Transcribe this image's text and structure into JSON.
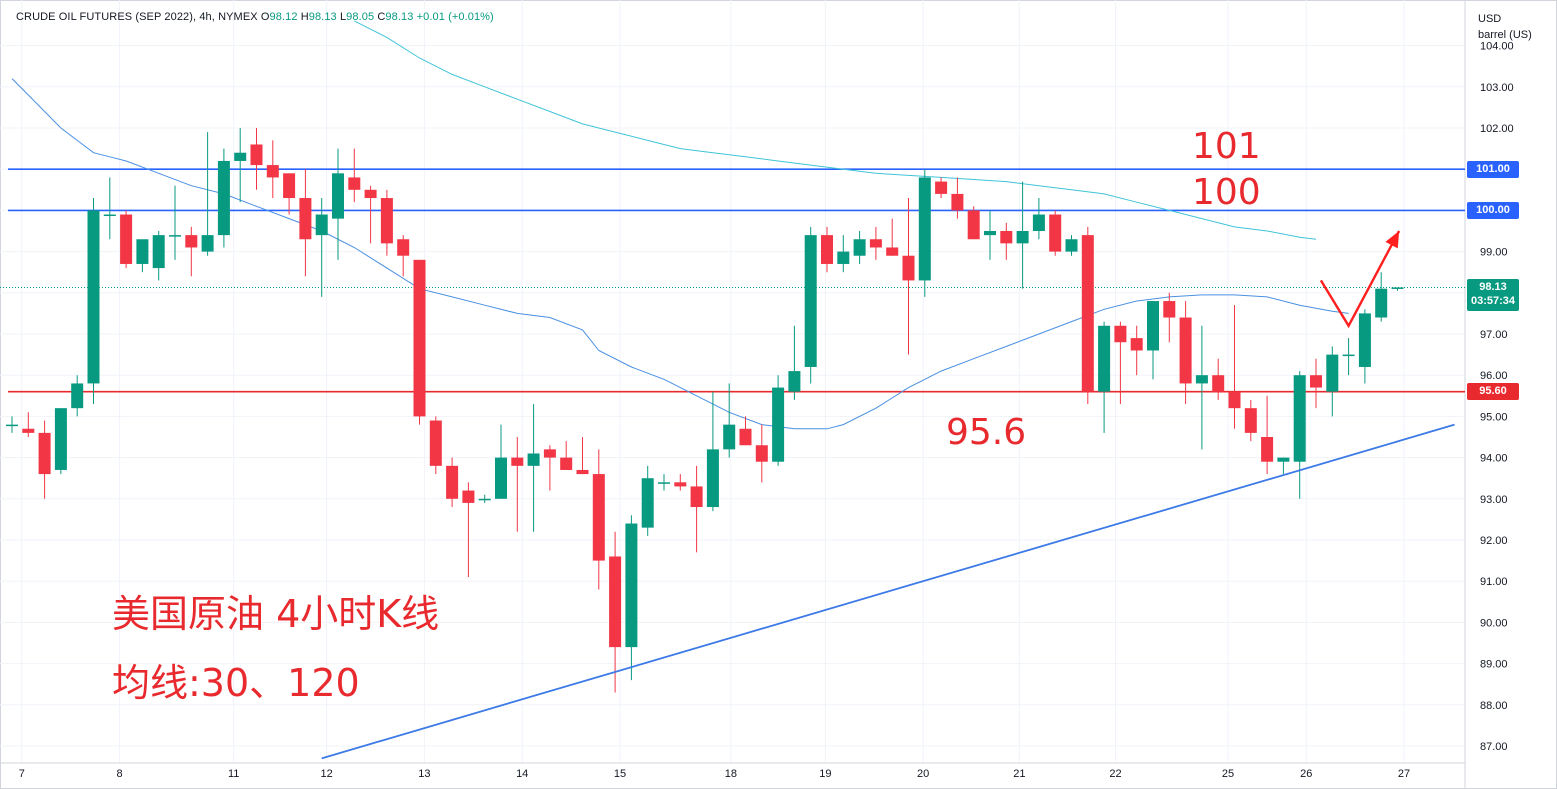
{
  "header": {
    "symbol": "CRUDE OIL FUTURES (SEP 2022), 4h, NYMEX",
    "o_label": "O",
    "o_value": "98.12",
    "h_label": "H",
    "h_value": "98.13",
    "l_label": "L",
    "l_value": "98.05",
    "c_label": "C",
    "c_value": "98.13",
    "change": "+0.01 (+0.01%)"
  },
  "units": {
    "currency": "USD",
    "unit": "barrel (US)"
  },
  "annotations": {
    "title_cn": "美国原油 4小时K线",
    "ma_cn": "均线:30、120",
    "level_101": "101",
    "level_100": "100",
    "level_956": "95.6"
  },
  "price_tags": {
    "t101": "101.00",
    "t100": "100.00",
    "t956": "95.60",
    "last_price": "98.13",
    "countdown": "03:57:34"
  },
  "colors": {
    "up": "#089981",
    "down": "#f23645",
    "level_blue": "#2962ff",
    "level_red": "#e8292d",
    "ma30": "#4a90e2",
    "ma120": "#40c4d8",
    "trend": "#3d7ae6"
  },
  "chart_data": {
    "type": "candlestick",
    "title": "CRUDE OIL FUTURES (SEP 2022), 4h, NYMEX",
    "ylim": [
      86.6,
      104.6
    ],
    "y_ticks": [
      "87.00",
      "88.00",
      "89.00",
      "90.00",
      "91.00",
      "92.00",
      "93.00",
      "94.00",
      "95.00",
      "96.00",
      "97.00",
      "98.00",
      "99.00",
      "100.00",
      "101.00",
      "102.00",
      "103.00",
      "104.00"
    ],
    "x_ticks": [
      {
        "label": "7",
        "bar": 0.6
      },
      {
        "label": "8",
        "bar": 6.6
      },
      {
        "label": "11",
        "bar": 13.6
      },
      {
        "label": "12",
        "bar": 19.3
      },
      {
        "label": "13",
        "bar": 25.3
      },
      {
        "label": "14",
        "bar": 31.3
      },
      {
        "label": "15",
        "bar": 37.3
      },
      {
        "label": "18",
        "bar": 44.1
      },
      {
        "label": "19",
        "bar": 49.9
      },
      {
        "label": "20",
        "bar": 55.9
      },
      {
        "label": "21",
        "bar": 61.8
      },
      {
        "label": "22",
        "bar": 67.7
      },
      {
        "label": "25",
        "bar": 74.6
      },
      {
        "label": "26",
        "bar": 79.4
      },
      {
        "label": "27",
        "bar": 85.4
      }
    ],
    "ohlc": [
      [
        94.8,
        95.0,
        94.6,
        94.8
      ],
      [
        94.7,
        95.1,
        94.5,
        94.6
      ],
      [
        94.6,
        94.9,
        93.0,
        93.6
      ],
      [
        93.7,
        95.2,
        93.6,
        95.2
      ],
      [
        95.2,
        96.0,
        95.0,
        95.8
      ],
      [
        95.8,
        100.3,
        95.3,
        100.0
      ],
      [
        99.9,
        100.8,
        99.3,
        99.9
      ],
      [
        99.9,
        100.0,
        98.6,
        98.7
      ],
      [
        98.7,
        99.2,
        98.5,
        99.3
      ],
      [
        98.6,
        99.5,
        98.3,
        99.4
      ],
      [
        99.4,
        100.6,
        98.8,
        99.4
      ],
      [
        99.4,
        99.6,
        98.4,
        99.1
      ],
      [
        99.0,
        101.9,
        98.9,
        99.4
      ],
      [
        99.4,
        101.5,
        99.1,
        101.2
      ],
      [
        101.2,
        102.0,
        100.2,
        101.4
      ],
      [
        101.6,
        102.0,
        100.5,
        101.1
      ],
      [
        101.1,
        101.7,
        100.3,
        100.8
      ],
      [
        100.9,
        100.9,
        99.9,
        100.3
      ],
      [
        100.3,
        101.0,
        98.4,
        99.3
      ],
      [
        99.4,
        100.3,
        97.9,
        99.9
      ],
      [
        99.8,
        101.5,
        98.8,
        100.9
      ],
      [
        100.8,
        101.5,
        100.2,
        100.5
      ],
      [
        100.5,
        100.6,
        99.2,
        100.3
      ],
      [
        100.3,
        100.5,
        98.9,
        99.2
      ],
      [
        99.3,
        99.4,
        98.4,
        98.9
      ],
      [
        98.8,
        98.8,
        94.8,
        95.0
      ],
      [
        94.9,
        95.0,
        93.6,
        93.8
      ],
      [
        93.8,
        94.0,
        92.8,
        93.0
      ],
      [
        93.2,
        93.4,
        91.1,
        92.9
      ],
      [
        93.0,
        93.1,
        92.9,
        93.0
      ],
      [
        93.0,
        94.8,
        93.0,
        94.0
      ],
      [
        94.0,
        94.5,
        92.2,
        93.8
      ],
      [
        93.8,
        95.3,
        92.2,
        94.1
      ],
      [
        94.2,
        94.3,
        93.2,
        94.0
      ],
      [
        94.0,
        94.4,
        93.8,
        93.7
      ],
      [
        93.7,
        94.5,
        93.6,
        93.6
      ],
      [
        93.6,
        94.2,
        90.8,
        91.5
      ],
      [
        91.6,
        92.2,
        88.3,
        89.4
      ],
      [
        89.4,
        92.6,
        88.6,
        92.4
      ],
      [
        92.3,
        93.8,
        92.1,
        93.5
      ],
      [
        93.4,
        93.6,
        93.2,
        93.4
      ],
      [
        93.4,
        93.6,
        93.2,
        93.3
      ],
      [
        93.3,
        93.8,
        91.7,
        92.8
      ],
      [
        92.8,
        95.6,
        92.7,
        94.2
      ],
      [
        94.2,
        95.8,
        94.0,
        94.8
      ],
      [
        94.7,
        95.0,
        94.3,
        94.3
      ],
      [
        94.3,
        94.8,
        93.4,
        93.9
      ],
      [
        93.9,
        96.0,
        93.8,
        95.7
      ],
      [
        95.6,
        97.2,
        95.4,
        96.1
      ],
      [
        96.2,
        99.6,
        95.8,
        99.4
      ],
      [
        99.4,
        99.6,
        98.5,
        98.7
      ],
      [
        98.7,
        99.4,
        98.5,
        99.0
      ],
      [
        98.9,
        99.5,
        98.7,
        99.3
      ],
      [
        99.3,
        99.6,
        98.8,
        99.1
      ],
      [
        99.1,
        99.8,
        98.9,
        98.9
      ],
      [
        98.9,
        100.3,
        96.5,
        98.3
      ],
      [
        98.3,
        101.0,
        97.9,
        100.8
      ],
      [
        100.7,
        100.8,
        100.3,
        100.4
      ],
      [
        100.4,
        100.8,
        99.8,
        100.0
      ],
      [
        100.0,
        100.1,
        99.3,
        99.3
      ],
      [
        99.4,
        100.0,
        98.8,
        99.5
      ],
      [
        99.5,
        99.7,
        98.8,
        99.2
      ],
      [
        99.2,
        100.7,
        98.1,
        99.5
      ],
      [
        99.5,
        100.3,
        99.3,
        99.9
      ],
      [
        99.9,
        100.0,
        98.9,
        99.0
      ],
      [
        99.0,
        99.4,
        98.9,
        99.3
      ],
      [
        99.4,
        99.6,
        95.3,
        95.6
      ],
      [
        95.6,
        97.3,
        94.6,
        97.2
      ],
      [
        97.2,
        97.3,
        95.3,
        96.8
      ],
      [
        96.9,
        97.2,
        96.0,
        96.6
      ],
      [
        96.6,
        97.8,
        95.9,
        97.8
      ],
      [
        97.8,
        98.0,
        96.8,
        97.4
      ],
      [
        97.4,
        97.8,
        95.3,
        95.8
      ],
      [
        95.8,
        97.2,
        94.2,
        96.0
      ],
      [
        96.0,
        96.4,
        95.4,
        95.6
      ],
      [
        95.6,
        97.7,
        94.7,
        95.2
      ],
      [
        95.2,
        95.4,
        94.4,
        94.6
      ],
      [
        94.5,
        95.5,
        93.6,
        93.9
      ],
      [
        93.9,
        94.0,
        93.6,
        94.0
      ],
      [
        93.9,
        96.1,
        93.0,
        96.0
      ],
      [
        96.0,
        96.4,
        95.2,
        95.7
      ],
      [
        95.6,
        96.7,
        95.0,
        96.5
      ],
      [
        96.5,
        96.9,
        96.0,
        96.5
      ],
      [
        96.2,
        97.6,
        95.8,
        97.5
      ],
      [
        97.4,
        98.5,
        97.3,
        98.1
      ],
      [
        98.12,
        98.13,
        98.05,
        98.13
      ]
    ],
    "ma30": [
      [
        0,
        103.2
      ],
      [
        1,
        102.8
      ],
      [
        2,
        102.4
      ],
      [
        3,
        102.0
      ],
      [
        4,
        101.7
      ],
      [
        5,
        101.4
      ],
      [
        6,
        101.3
      ],
      [
        7,
        101.2
      ],
      [
        9,
        100.9
      ],
      [
        11,
        100.6
      ],
      [
        13,
        100.4
      ],
      [
        15,
        100.1
      ],
      [
        17,
        99.8
      ],
      [
        19,
        99.5
      ],
      [
        21,
        99.1
      ],
      [
        23,
        98.6
      ],
      [
        25,
        98.1
      ],
      [
        27,
        97.9
      ],
      [
        29,
        97.7
      ],
      [
        31,
        97.5
      ],
      [
        33,
        97.4
      ],
      [
        35,
        97.1
      ],
      [
        36,
        96.6
      ],
      [
        38,
        96.2
      ],
      [
        40,
        95.9
      ],
      [
        42,
        95.5
      ],
      [
        44,
        95.1
      ],
      [
        46,
        94.8
      ],
      [
        48,
        94.7
      ],
      [
        50,
        94.7
      ],
      [
        51,
        94.8
      ],
      [
        53,
        95.2
      ],
      [
        55,
        95.7
      ],
      [
        57,
        96.1
      ],
      [
        59,
        96.4
      ],
      [
        61,
        96.7
      ],
      [
        63,
        97.0
      ],
      [
        65,
        97.3
      ],
      [
        67,
        97.6
      ],
      [
        69,
        97.8
      ],
      [
        71,
        97.9
      ],
      [
        73,
        97.95
      ],
      [
        75,
        97.95
      ],
      [
        77,
        97.9
      ],
      [
        79,
        97.7
      ],
      [
        81,
        97.55
      ],
      [
        82,
        97.5
      ]
    ],
    "ma120": [
      [
        21,
        104.6
      ],
      [
        23,
        104.2
      ],
      [
        25,
        103.7
      ],
      [
        27,
        103.3
      ],
      [
        29,
        103.0
      ],
      [
        31,
        102.7
      ],
      [
        33,
        102.4
      ],
      [
        35,
        102.1
      ],
      [
        37,
        101.9
      ],
      [
        39,
        101.7
      ],
      [
        41,
        101.5
      ],
      [
        43,
        101.4
      ],
      [
        45,
        101.3
      ],
      [
        47,
        101.2
      ],
      [
        49,
        101.1
      ],
      [
        51,
        101.0
      ],
      [
        53,
        100.9
      ],
      [
        55,
        100.85
      ],
      [
        57,
        100.8
      ],
      [
        59,
        100.75
      ],
      [
        61,
        100.7
      ],
      [
        63,
        100.6
      ],
      [
        65,
        100.5
      ],
      [
        67,
        100.4
      ],
      [
        69,
        100.2
      ],
      [
        71,
        100.0
      ],
      [
        73,
        99.8
      ],
      [
        75,
        99.6
      ],
      [
        77,
        99.5
      ],
      [
        79,
        99.35
      ],
      [
        80,
        99.3
      ]
    ],
    "hlines": [
      101.0,
      100.0,
      95.6
    ],
    "trendline": [
      [
        19.0,
        86.7
      ],
      [
        88.5,
        94.8
      ]
    ],
    "arrows": [
      [
        [
          80.3,
          98.3
        ],
        [
          82.0,
          97.2
        ],
        [
          85.1,
          99.5
        ]
      ]
    ]
  }
}
